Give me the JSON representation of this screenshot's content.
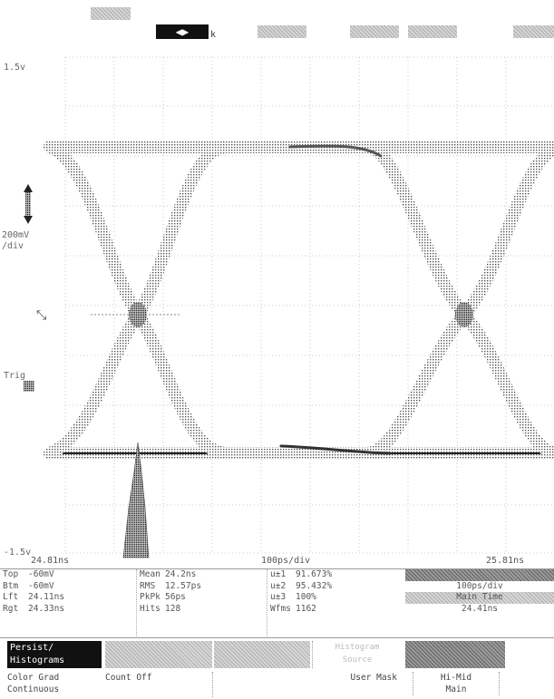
{
  "topbar": {
    "arrow_label": "◀▶",
    "arrow_tail": "k"
  },
  "axes": {
    "y_top": "1.5v",
    "y_bottom": "-1.5v",
    "volts_div": "200mV",
    "volts_div_unit": "/div",
    "offset_label": "Trig"
  },
  "scale": {
    "left": "24.81ns",
    "center": "100ps/div",
    "right": "25.81ns"
  },
  "measurements": {
    "col1": [
      {
        "k": "Top",
        "v": "-60mV"
      },
      {
        "k": "Btm",
        "v": "-60mV"
      },
      {
        "k": "Lft",
        "v": "24.11ns"
      },
      {
        "k": "Rgt",
        "v": "24.33ns"
      }
    ],
    "col2": [
      {
        "k": "Mean",
        "v": "24.2ns"
      },
      {
        "k": "RMS",
        "v": "12.57ps"
      },
      {
        "k": "PkPk",
        "v": "56ps"
      },
      {
        "k": "Hits",
        "v": "128"
      }
    ],
    "col3": [
      {
        "k": "u±1",
        "v": "91.673%"
      },
      {
        "k": "u±2",
        "v": "95.432%"
      },
      {
        "k": "u±3",
        "v": "100%"
      },
      {
        "k": "Wfms",
        "v": "1162"
      }
    ],
    "scale_box": {
      "line2": "100ps/div",
      "line3": "Main Time",
      "line4": "24.41ns"
    }
  },
  "softkeys": {
    "persist_line1": "Persist/",
    "persist_line2": "Histograms",
    "colorgrade_line1": "Color Grad",
    "colorgrade_line2": "Continuous",
    "count_off": "Count Off",
    "user_mask": "User Mask",
    "hi_mid_line1": "Hi-Mid",
    "hi_mid_line2": "Main",
    "ghost_line1": "Histogram",
    "ghost_line2": "Source"
  }
}
